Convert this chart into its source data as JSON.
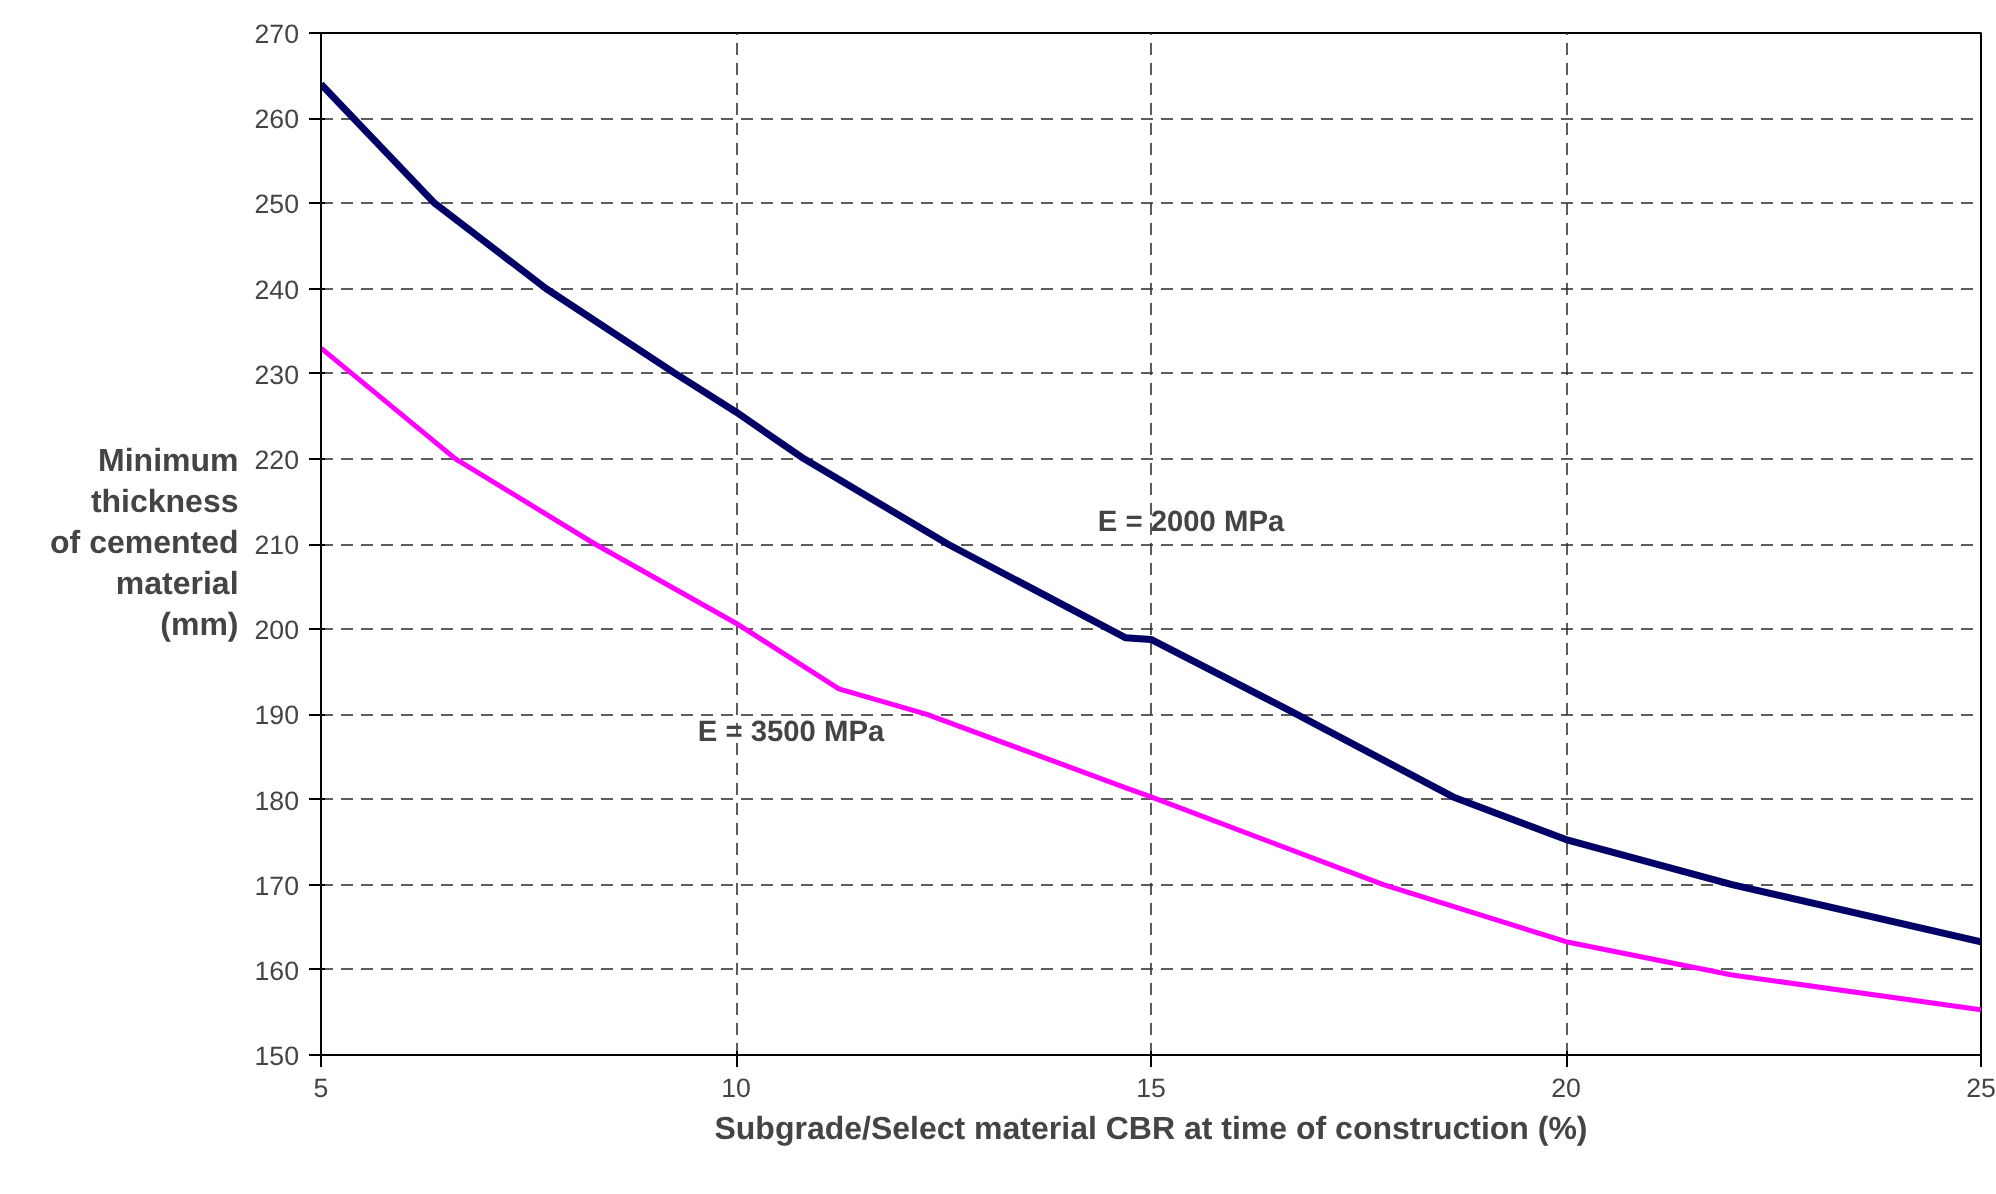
{
  "chart_data": {
    "type": "line",
    "xlabel": "Subgrade/Select material CBR at time of construction (%)",
    "ylabel": "Minimum\nthickness\nof cemented\nmaterial\n(mm)",
    "xlim": [
      5,
      25
    ],
    "ylim": [
      150,
      270
    ],
    "xticks": [
      5,
      10,
      15,
      20,
      25
    ],
    "yticks": [
      150,
      160,
      170,
      180,
      190,
      200,
      210,
      220,
      230,
      240,
      250,
      260,
      270
    ],
    "grid": true,
    "line_style": "solid",
    "marker": "none",
    "series": [
      {
        "color": "#000066",
        "x": [
          5,
          6.37,
          7.71,
          9.27,
          10,
          10.82,
          12.55,
          14.69,
          15,
          16.7,
          18.64,
          20,
          22,
          25
        ],
        "values": [
          264,
          250,
          240,
          230,
          225.5,
          220,
          210,
          199,
          198.8,
          190.3,
          180.3,
          175.3,
          170,
          163.3
        ]
      },
      {
        "color": "#ff00ff",
        "x": [
          5,
          6.62,
          8.3,
          10,
          11.24,
          12.3,
          14.69,
          15,
          17.8,
          20,
          22,
          25
        ],
        "values": [
          233,
          220,
          210,
          200.7,
          193,
          190,
          181.4,
          180.3,
          170,
          163.3,
          159.4,
          155.3
        ]
      }
    ],
    "annotations": [
      "E = 2000 MPa",
      "E = 3500 MPa"
    ]
  }
}
